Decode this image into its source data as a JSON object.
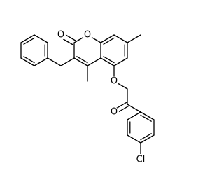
{
  "atoms": [
    "O",
    "O",
    "O",
    "O",
    "Cl"
  ]
}
